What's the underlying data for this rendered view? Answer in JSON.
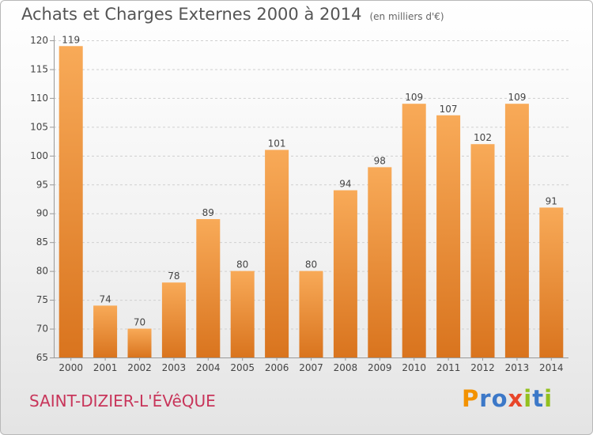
{
  "header": {
    "title": "Achats et Charges Externes 2000 à 2014",
    "unit": "(en milliers d'€)"
  },
  "footer": {
    "place": "SAINT-DIZIER-L'ÉVêQUE",
    "logo": "Proxiti"
  },
  "colors": {
    "bar_top": "#f8aa58",
    "bar_bottom": "#d9741e",
    "place": "#c8355a",
    "logo_letters": [
      "#f39200",
      "#3c78c8",
      "#3c78c8",
      "#e8462a",
      "#93c01f",
      "#3c78c8",
      "#93c01f"
    ]
  },
  "chart_data": {
    "type": "bar",
    "title": "Achats et Charges Externes 2000 à 2014",
    "subtitle": "(en milliers d'€)",
    "categories": [
      "2000",
      "2001",
      "2002",
      "2003",
      "2004",
      "2005",
      "2006",
      "2007",
      "2008",
      "2009",
      "2010",
      "2011",
      "2012",
      "2013",
      "2014"
    ],
    "values": [
      119,
      74,
      70,
      78,
      89,
      80,
      101,
      80,
      94,
      98,
      109,
      107,
      102,
      109,
      91
    ],
    "ylim": [
      65,
      120
    ],
    "yticks": [
      65,
      70,
      75,
      80,
      85,
      90,
      95,
      100,
      105,
      110,
      115,
      120
    ],
    "grid": true,
    "legend": "none"
  }
}
